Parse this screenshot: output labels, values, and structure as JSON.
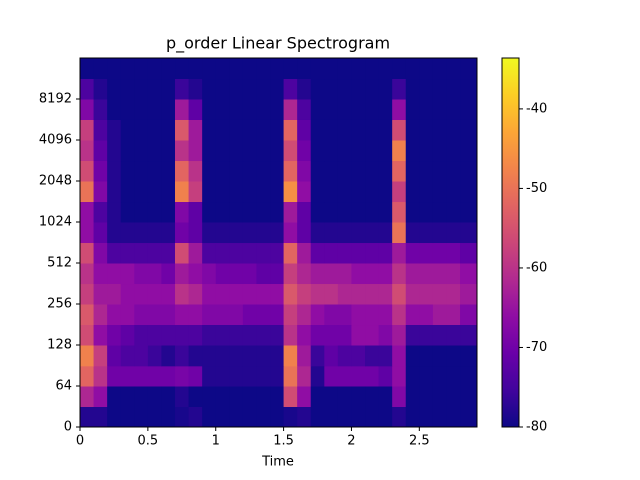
{
  "chart_data": {
    "type": "heatmap",
    "title": "p_order Linear Spectrogram",
    "xlabel": "Time",
    "colormap": "plasma",
    "yscale": "symlog",
    "linthresh": 64,
    "x": [
      0,
      0.1,
      0.2,
      0.3,
      0.4,
      0.5,
      0.6,
      0.7,
      0.8,
      0.9,
      1.0,
      1.1,
      1.2,
      1.3,
      1.4,
      1.5,
      1.6,
      1.7,
      1.8,
      1.9,
      2.0,
      2.1,
      2.2,
      2.3,
      2.4,
      2.5,
      2.6,
      2.7,
      2.8
    ],
    "y": [
      0,
      32,
      64,
      90,
      128,
      181,
      256,
      362,
      512,
      724,
      1024,
      1448,
      2048,
      2896,
      4096,
      5793,
      8192,
      11585
    ],
    "xlim": [
      0,
      2.925
    ],
    "ylim": [
      0,
      16384
    ],
    "xticks": [
      0,
      0.5,
      1,
      1.5,
      2,
      2.5
    ],
    "yticks": [
      0,
      64,
      128,
      256,
      512,
      1024,
      2048,
      4096,
      8192
    ],
    "zlim": [
      -80,
      -33.6
    ],
    "zticks": [
      -80,
      -70,
      -60,
      -50,
      -40
    ],
    "z": [
      [
        -78,
        -78,
        -80,
        -80,
        -80,
        -80,
        -80,
        -79,
        -78,
        -80,
        -80,
        -80,
        -80,
        -80,
        -80,
        -79,
        -78,
        -80,
        -80,
        -80,
        -80,
        -80,
        -80,
        -78,
        -80,
        -80,
        -80,
        -80,
        -80
      ],
      [
        -62,
        -66,
        -80,
        -80,
        -80,
        -80,
        -80,
        -78,
        -80,
        -80,
        -80,
        -80,
        -80,
        -80,
        -80,
        -56,
        -66,
        -80,
        -80,
        -80,
        -80,
        -80,
        -80,
        -68,
        -80,
        -80,
        -80,
        -80,
        -80
      ],
      [
        -52,
        -60,
        -70,
        -70,
        -70,
        -70,
        -70,
        -69,
        -70,
        -78,
        -78,
        -78,
        -78,
        -78,
        -78,
        -50,
        -62,
        -78,
        -70,
        -70,
        -70,
        -70,
        -72,
        -66,
        -80,
        -80,
        -80,
        -80,
        -80
      ],
      [
        -48,
        -58,
        -72,
        -74,
        -74,
        -76,
        -78,
        -76,
        -78,
        -78,
        -78,
        -78,
        -78,
        -78,
        -78,
        -48,
        -64,
        -76,
        -72,
        -74,
        -74,
        -76,
        -76,
        -66,
        -80,
        -80,
        -80,
        -80,
        -80
      ],
      [
        -56,
        -66,
        -70,
        -72,
        -74,
        -74,
        -74,
        -74,
        -74,
        -76,
        -76,
        -76,
        -76,
        -76,
        -76,
        -60,
        -66,
        -70,
        -70,
        -70,
        -66,
        -66,
        -68,
        -64,
        -76,
        -76,
        -76,
        -76,
        -76
      ],
      [
        -54,
        -62,
        -66,
        -66,
        -68,
        -68,
        -68,
        -66,
        -66,
        -68,
        -68,
        -68,
        -70,
        -70,
        -70,
        -58,
        -62,
        -66,
        -68,
        -68,
        -66,
        -66,
        -66,
        -60,
        -66,
        -66,
        -64,
        -64,
        -68
      ],
      [
        -58,
        -64,
        -64,
        -66,
        -66,
        -66,
        -66,
        -60,
        -62,
        -66,
        -66,
        -66,
        -66,
        -66,
        -66,
        -54,
        -58,
        -60,
        -60,
        -62,
        -62,
        -62,
        -62,
        -56,
        -62,
        -62,
        -62,
        -62,
        -64
      ],
      [
        -60,
        -66,
        -66,
        -66,
        -68,
        -68,
        -70,
        -64,
        -66,
        -68,
        -70,
        -70,
        -70,
        -72,
        -72,
        -58,
        -62,
        -64,
        -64,
        -64,
        -66,
        -66,
        -66,
        -60,
        -64,
        -64,
        -64,
        -64,
        -66
      ],
      [
        -56,
        -68,
        -74,
        -74,
        -74,
        -74,
        -74,
        -56,
        -64,
        -74,
        -74,
        -74,
        -74,
        -74,
        -74,
        -52,
        -64,
        -72,
        -72,
        -72,
        -72,
        -72,
        -72,
        -64,
        -70,
        -70,
        -70,
        -70,
        -72
      ],
      [
        -66,
        -72,
        -78,
        -78,
        -78,
        -78,
        -78,
        -70,
        -72,
        -78,
        -78,
        -78,
        -78,
        -78,
        -78,
        -66,
        -72,
        -78,
        -78,
        -78,
        -78,
        -78,
        -78,
        -50,
        -78,
        -78,
        -78,
        -78,
        -78
      ],
      [
        -66,
        -74,
        -78,
        -80,
        -80,
        -80,
        -80,
        -68,
        -72,
        -80,
        -80,
        -80,
        -80,
        -80,
        -80,
        -64,
        -72,
        -80,
        -80,
        -80,
        -80,
        -80,
        -80,
        -54,
        -80,
        -80,
        -80,
        -80,
        -80
      ],
      [
        -50,
        -68,
        -78,
        -80,
        -80,
        -80,
        -80,
        -48,
        -58,
        -80,
        -80,
        -80,
        -80,
        -80,
        -80,
        -46,
        -66,
        -80,
        -80,
        -80,
        -80,
        -80,
        -80,
        -58,
        -80,
        -80,
        -80,
        -80,
        -80
      ],
      [
        -56,
        -70,
        -78,
        -80,
        -80,
        -80,
        -80,
        -52,
        -60,
        -80,
        -80,
        -80,
        -80,
        -80,
        -80,
        -52,
        -68,
        -80,
        -80,
        -80,
        -80,
        -80,
        -80,
        -52,
        -80,
        -80,
        -80,
        -80,
        -80
      ],
      [
        -60,
        -72,
        -78,
        -80,
        -80,
        -80,
        -80,
        -60,
        -64,
        -80,
        -80,
        -80,
        -80,
        -80,
        -80,
        -56,
        -70,
        -80,
        -80,
        -80,
        -80,
        -80,
        -80,
        -48,
        -80,
        -80,
        -80,
        -80,
        -80
      ],
      [
        -58,
        -74,
        -78,
        -80,
        -80,
        -80,
        -80,
        -54,
        -64,
        -80,
        -80,
        -80,
        -80,
        -80,
        -80,
        -52,
        -72,
        -80,
        -80,
        -80,
        -80,
        -80,
        -80,
        -56,
        -80,
        -80,
        -80,
        -80,
        -80
      ],
      [
        -68,
        -76,
        -80,
        -80,
        -80,
        -80,
        -80,
        -64,
        -72,
        -80,
        -80,
        -80,
        -80,
        -80,
        -80,
        -62,
        -74,
        -80,
        -80,
        -80,
        -80,
        -80,
        -80,
        -66,
        -80,
        -80,
        -80,
        -80,
        -80
      ],
      [
        -74,
        -78,
        -80,
        -80,
        -80,
        -80,
        -80,
        -76,
        -78,
        -80,
        -80,
        -80,
        -80,
        -80,
        -80,
        -74,
        -78,
        -80,
        -80,
        -80,
        -80,
        -80,
        -80,
        -76,
        -80,
        -80,
        -80,
        -80,
        -80
      ],
      [
        -80,
        -80,
        -80,
        -80,
        -80,
        -80,
        -80,
        -80,
        -80,
        -80,
        -80,
        -80,
        -80,
        -80,
        -80,
        -80,
        -80,
        -80,
        -80,
        -80,
        -80,
        -80,
        -80,
        -80,
        -80,
        -80,
        -80,
        -80,
        -80
      ]
    ]
  }
}
